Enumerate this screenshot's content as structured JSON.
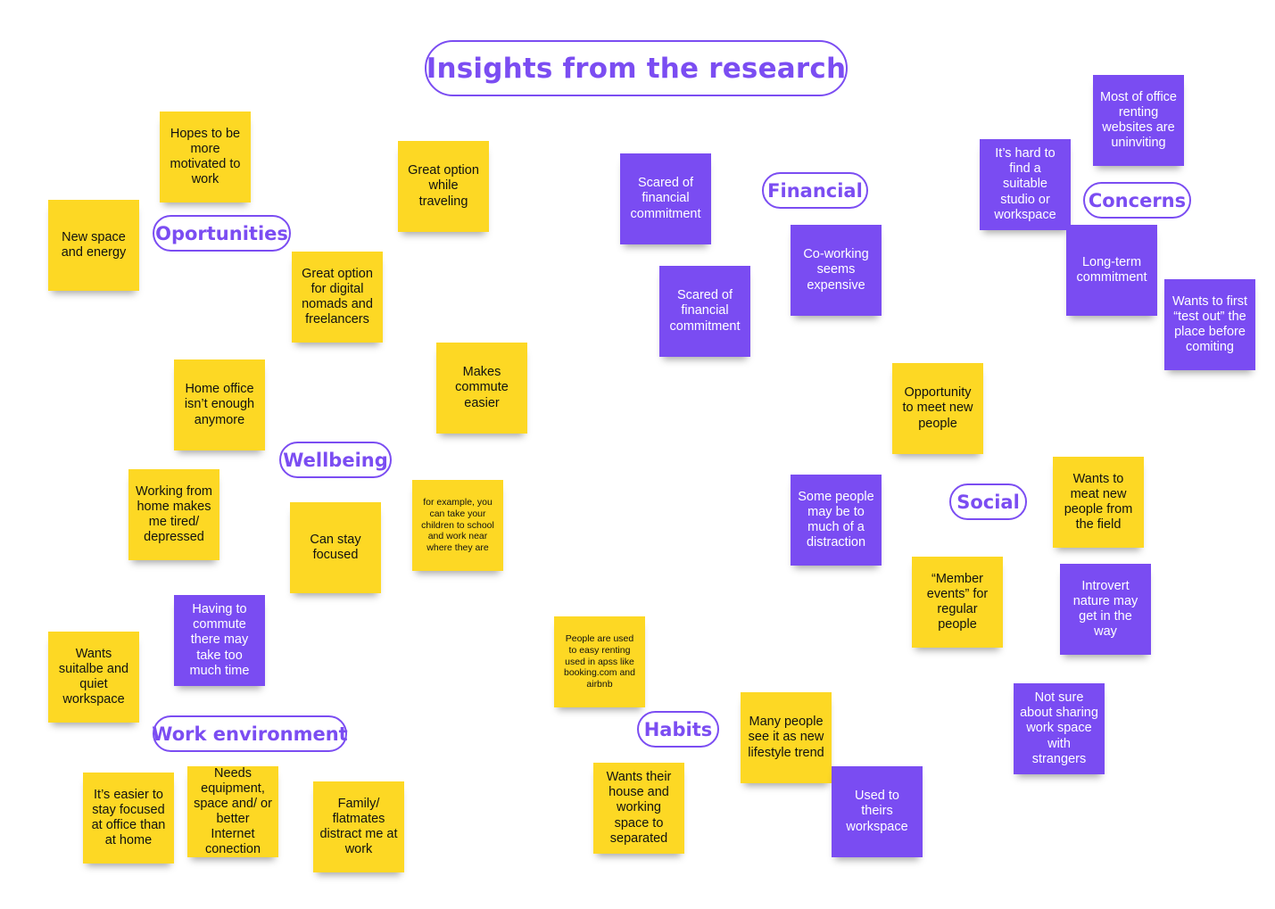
{
  "board": {
    "title": "Insights from the research",
    "colors": {
      "accent": "#7b4df2",
      "yellow_note": "#fdd824",
      "purple_note": "#7a4cf2",
      "background": "#ffffff"
    },
    "labels": {
      "oportunities": "Oportunities",
      "wellbeing": "Wellbeing",
      "work_environment": "Work environment",
      "financial": "Financial",
      "concerns": "Concerns",
      "social": "Social",
      "habits": "Habits"
    },
    "notes": {
      "hopes_motivated": "Hopes to be more motivated to work",
      "new_space_energy": "New space and energy",
      "great_option_traveling": "Great option while traveling",
      "digital_nomads": "Great option for digital nomads and freelancers",
      "home_office_enough": "Home office isn’t enough anymore",
      "makes_commute_easier": "Makes commute easier",
      "working_home_tired": "Working from home makes me tired/ depressed",
      "can_stay_focused": "Can stay focused",
      "example_children": "for example, you can take your children to school and work near where they are",
      "having_commute": "Having to commute there may take too much time",
      "wants_quiet_workspace": "Wants suitalbe and quiet workspace",
      "easier_focused_office": "It’s easier to stay focused at office than at home",
      "needs_equipment": "Needs equipment, space and/ or better Internet conection",
      "family_flatmates": "Family/ flatmates distract me at work",
      "scared_financial_1": "Scared of financial commitment",
      "scared_financial_2": "Scared of financial commitment",
      "coworking_expensive": "Co-working seems expensive",
      "office_websites": "Most of office renting websites are uninviting",
      "hard_to_find": "It’s hard to find a suitable studio or workspace",
      "long_term": "Long-term commitment",
      "test_out": "Wants to first “test out” the place before comiting",
      "meet_new_people": "Opportunity to meet new people",
      "distraction": "Some people may be to much of a distraction",
      "meat_field": "Wants to meat new people from the field",
      "member_events": "“Member events” for regular people",
      "introvert": "Introvert nature may get in the way",
      "sharing_strangers": "Not sure about sharing work space with strangers",
      "easy_renting": "People are used to easy renting used in apss like booking.com and airbnb",
      "lifestyle_trend": "Many people see it as new lifestyle trend",
      "house_separated": "Wants their house and working space to separated",
      "used_workspace": "Used to theirs workspace"
    }
  }
}
